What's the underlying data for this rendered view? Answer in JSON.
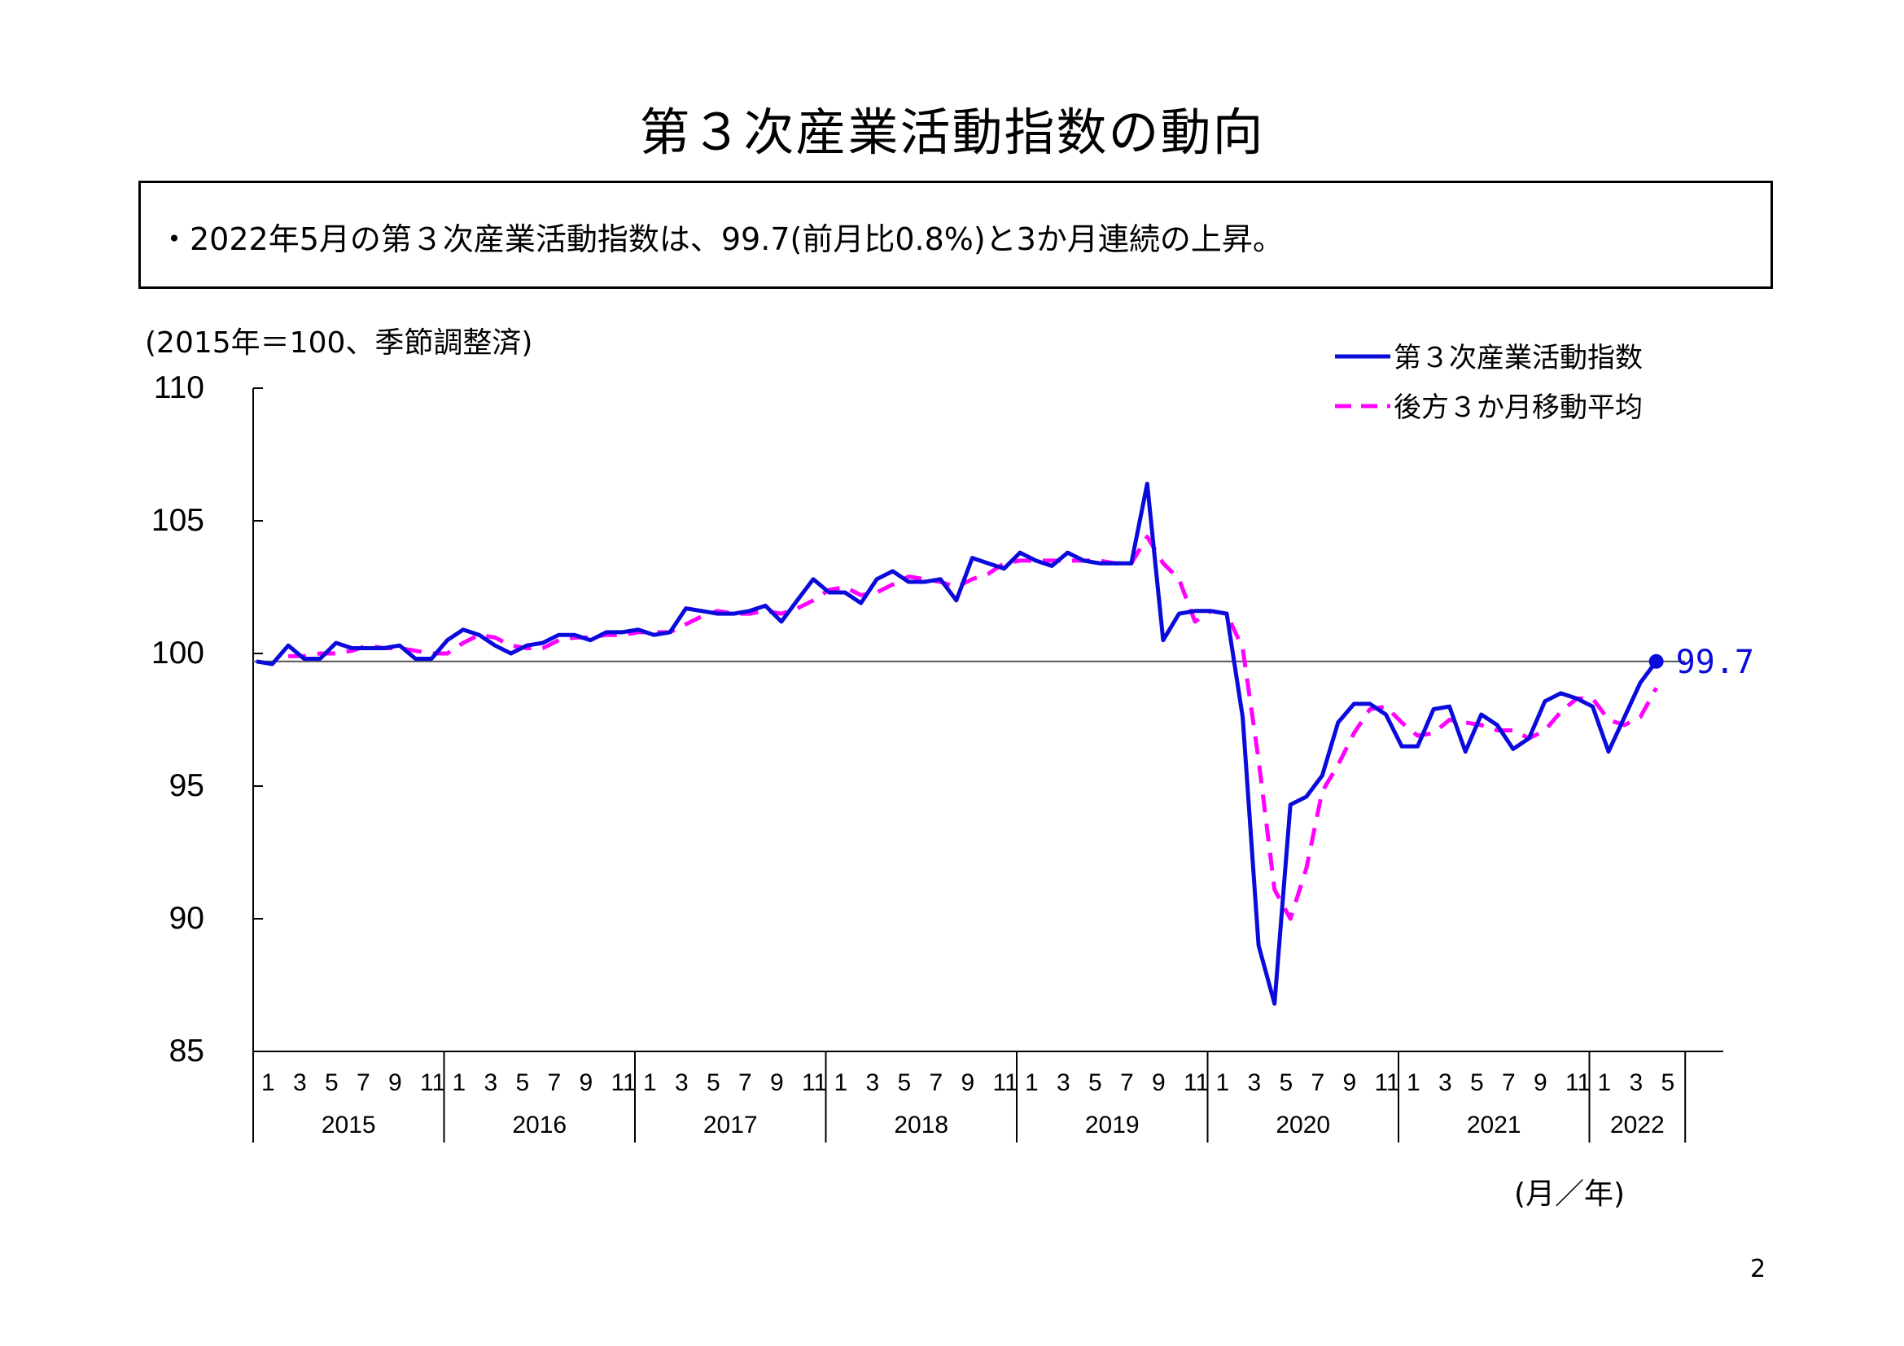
{
  "title": "第３次産業活動指数の動向",
  "summary": "・2022年5月の第３次産業活動指数は、99.7(前月比0.8%)と3か月連続の上昇。",
  "unit_note": "(2015年＝100、季節調整済)",
  "axis_unit": "(月／年)",
  "page_number": "2",
  "colors": {
    "index": "#0a0adc",
    "moving_average": "#ff00ff",
    "reference": "#555555"
  },
  "chart_data": {
    "type": "line",
    "title": "",
    "ylabel": "",
    "xlabel": "",
    "ylim": [
      85,
      110
    ],
    "yticks": [
      85,
      90,
      95,
      100,
      105,
      110
    ],
    "grid": false,
    "legend_position": "top-right",
    "years": [
      "2015",
      "2016",
      "2017",
      "2018",
      "2019",
      "2020",
      "2021",
      "2022"
    ],
    "month_ticks": [
      "1",
      "3",
      "5",
      "7",
      "9",
      "11"
    ],
    "reference_line": 99.7,
    "last_label": "99.7",
    "series": [
      {
        "name": "第３次産業活動指数",
        "style": "solid",
        "values": [
          99.7,
          99.6,
          100.3,
          99.8,
          99.8,
          100.4,
          100.2,
          100.2,
          100.2,
          100.3,
          99.8,
          99.8,
          100.5,
          100.9,
          100.7,
          100.3,
          100.0,
          100.3,
          100.4,
          100.7,
          100.7,
          100.5,
          100.8,
          100.8,
          100.9,
          100.7,
          100.8,
          101.7,
          101.6,
          101.5,
          101.5,
          101.6,
          101.8,
          101.2,
          102.0,
          102.8,
          102.3,
          102.3,
          101.9,
          102.8,
          103.1,
          102.7,
          102.7,
          102.8,
          102.0,
          103.6,
          103.4,
          103.2,
          103.8,
          103.5,
          103.3,
          103.8,
          103.5,
          103.4,
          103.4,
          103.4,
          106.4,
          100.5,
          101.5,
          101.6,
          101.6,
          101.5,
          97.6,
          89.0,
          86.8,
          94.3,
          94.6,
          95.4,
          97.4,
          98.1,
          98.1,
          97.7,
          96.5,
          96.5,
          97.9,
          98.0,
          96.3,
          97.7,
          97.3,
          96.4,
          96.8,
          98.2,
          98.5,
          98.3,
          98.0,
          96.3,
          97.6,
          98.9,
          99.7
        ]
      },
      {
        "name": "後方３か月移動平均",
        "style": "dashed",
        "values": [
          null,
          null,
          99.9,
          99.9,
          100.0,
          100.0,
          100.1,
          100.3,
          100.2,
          100.2,
          100.1,
          100.0,
          100.0,
          100.4,
          100.7,
          100.6,
          100.3,
          100.2,
          100.2,
          100.5,
          100.6,
          100.6,
          100.7,
          100.7,
          100.8,
          100.8,
          100.8,
          101.1,
          101.4,
          101.6,
          101.5,
          101.5,
          101.6,
          101.5,
          101.7,
          102.0,
          102.4,
          102.5,
          102.2,
          102.3,
          102.6,
          102.9,
          102.8,
          102.7,
          102.5,
          102.8,
          103.0,
          103.4,
          103.5,
          103.5,
          103.5,
          103.5,
          103.5,
          103.5,
          103.4,
          103.4,
          104.4,
          103.4,
          102.8,
          101.2,
          101.6,
          101.5,
          100.2,
          96.0,
          91.1,
          90.0,
          91.9,
          94.8,
          95.8,
          97.0,
          97.9,
          98.0,
          97.4,
          96.9,
          97.0,
          97.5,
          97.4,
          97.3,
          97.1,
          97.1,
          96.8,
          97.1,
          97.8,
          98.3,
          98.3,
          97.5,
          97.3,
          97.6,
          98.7
        ]
      }
    ]
  }
}
